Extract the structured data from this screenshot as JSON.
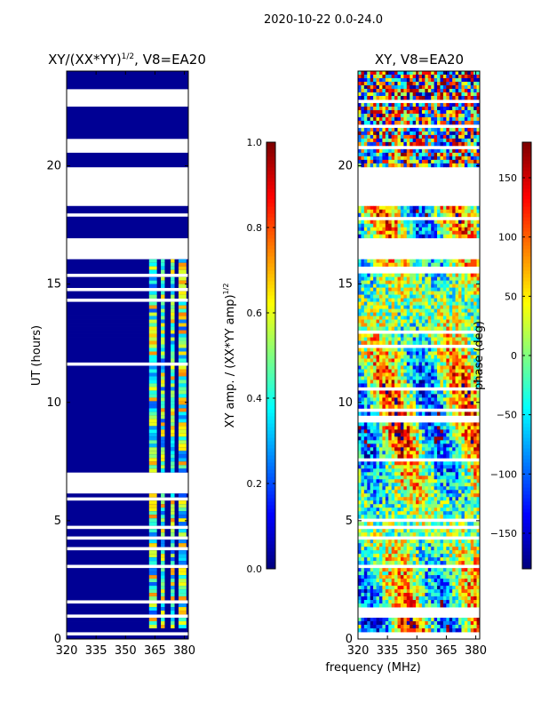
{
  "figure_title": "2020-10-22 0.0-24.0",
  "shared_xlabel": "frequency (MHz)",
  "chart_data": [
    {
      "type": "heatmap",
      "title": "XY/(XX*YY)",
      "title_exponent": "1/2",
      "title_suffix": ", V8=EA20",
      "xlabel": "",
      "ylabel": "UT (hours)",
      "xlim": [
        320,
        382
      ],
      "ylim": [
        0,
        24
      ],
      "xticks": [
        320,
        335,
        350,
        365,
        380
      ],
      "yticks": [
        0,
        5,
        10,
        15,
        20
      ],
      "grid": false,
      "colorbar": {
        "label": "XY amp. / (XX*YY amp)",
        "label_exponent": "1/2",
        "range": [
          0.0,
          1.0
        ],
        "ticks": [
          "0.0",
          "0.2",
          "0.4",
          "0.6",
          "0.8",
          "1.0"
        ],
        "colormap": "jet"
      },
      "data_gaps_ut": [
        [
          0.9,
          1.1
        ],
        [
          6.2,
          7.1
        ],
        [
          16.1,
          17.0
        ],
        [
          18.3,
          20.0
        ],
        [
          20.5,
          21.2
        ],
        [
          22.5,
          23.2
        ]
      ],
      "bright_channels_mhz": [
        [
          362,
          366
        ],
        [
          368,
          370
        ],
        [
          373,
          375
        ],
        [
          377,
          381
        ]
      ],
      "background_value": 0.02,
      "band_value_range": [
        0.2,
        0.75
      ],
      "band_active_ut": [
        0.5,
        16.1
      ]
    },
    {
      "type": "heatmap",
      "title": "XY, V8=EA20",
      "xlabel": "frequency (MHz)",
      "ylabel": "",
      "xlim": [
        320,
        382
      ],
      "ylim": [
        0,
        24
      ],
      "xticks": [
        320,
        335,
        350,
        365,
        380
      ],
      "yticks": [
        0,
        5,
        10,
        15,
        20
      ],
      "grid": false,
      "colorbar": {
        "label": "phase (deg)",
        "range": [
          -180,
          180
        ],
        "ticks": [
          "−150",
          "−100",
          "−50",
          "0",
          "50",
          "100",
          "150"
        ],
        "colormap": "jet"
      },
      "data_gaps_ut": [
        [
          0.9,
          1.1
        ],
        [
          16.1,
          17.0
        ],
        [
          18.3,
          20.0
        ]
      ],
      "phase_range_deg": [
        -180,
        180
      ]
    }
  ]
}
